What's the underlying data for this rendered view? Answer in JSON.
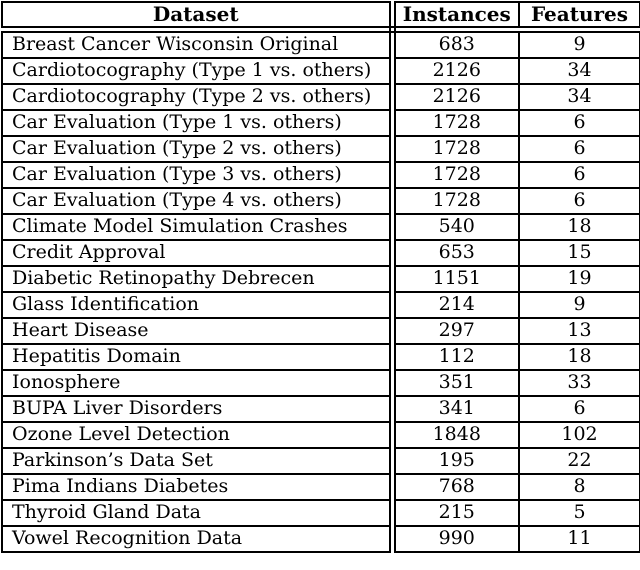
{
  "table": {
    "headers": {
      "dataset": "Dataset",
      "instances": "Instances",
      "features": "Features"
    },
    "rows": [
      {
        "dataset": "Breast Cancer Wisconsin Original",
        "instances": "683",
        "features": "9"
      },
      {
        "dataset": "Cardiotocography (Type 1 vs. others)",
        "instances": "2126",
        "features": "34"
      },
      {
        "dataset": "Cardiotocography (Type 2 vs. others)",
        "instances": "2126",
        "features": "34"
      },
      {
        "dataset": "Car Evaluation (Type 1 vs. others)",
        "instances": "1728",
        "features": "6"
      },
      {
        "dataset": "Car Evaluation (Type 2 vs. others)",
        "instances": "1728",
        "features": "6"
      },
      {
        "dataset": "Car Evaluation (Type 3 vs. others)",
        "instances": "1728",
        "features": "6"
      },
      {
        "dataset": "Car Evaluation (Type 4 vs. others)",
        "instances": "1728",
        "features": "6"
      },
      {
        "dataset": "Climate Model Simulation Crashes",
        "instances": "540",
        "features": "18"
      },
      {
        "dataset": "Credit Approval",
        "instances": "653",
        "features": "15"
      },
      {
        "dataset": "Diabetic Retinopathy Debrecen",
        "instances": "1151",
        "features": "19"
      },
      {
        "dataset": "Glass Identification",
        "instances": "214",
        "features": "9"
      },
      {
        "dataset": "Heart Disease",
        "instances": "297",
        "features": "13"
      },
      {
        "dataset": "Hepatitis Domain",
        "instances": "112",
        "features": "18"
      },
      {
        "dataset": "Ionosphere",
        "instances": "351",
        "features": "33"
      },
      {
        "dataset": "BUPA Liver Disorders",
        "instances": "341",
        "features": "6"
      },
      {
        "dataset": "Ozone Level Detection",
        "instances": "1848",
        "features": "102"
      },
      {
        "dataset": "Parkinson’s Data Set",
        "instances": "195",
        "features": "22"
      },
      {
        "dataset": "Pima Indians Diabetes",
        "instances": "768",
        "features": "8"
      },
      {
        "dataset": "Thyroid Gland Data",
        "instances": "215",
        "features": "5"
      },
      {
        "dataset": "Vowel Recognition Data",
        "instances": "990",
        "features": "11"
      }
    ],
    "colors": {
      "border": "#000000",
      "background": "#ffffff",
      "text": "#000000"
    }
  }
}
